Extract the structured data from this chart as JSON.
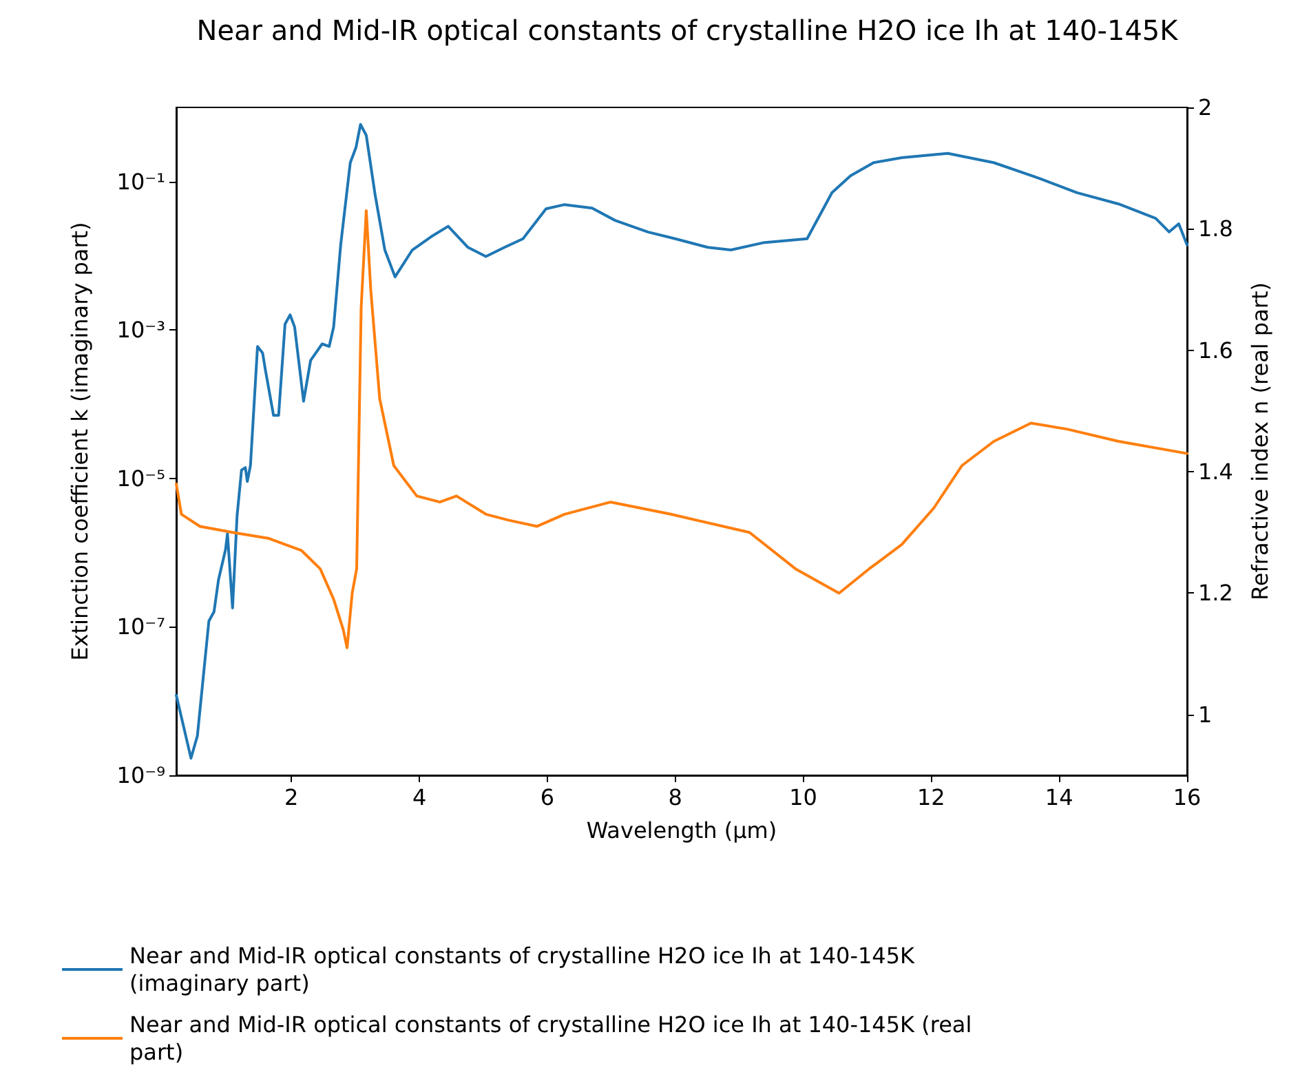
{
  "chart_data": {
    "type": "line",
    "title": "Near and Mid-IR optical constants of crystalline H2O ice Ih at 140-145K",
    "xlabel": "Wavelength (μm)",
    "ylabel": "Extinction coefficient k (imaginary part)",
    "y2label": "Refractive index n (real part)",
    "xlim": [
      0.2,
      16
    ],
    "xticks": [
      2,
      4,
      6,
      8,
      10,
      12,
      14,
      16
    ],
    "ylim": [
      1e-09,
      1
    ],
    "yticks": [
      {
        "value": 1e-09,
        "label": "10⁻⁹"
      },
      {
        "value": 1e-07,
        "label": "10⁻⁷"
      },
      {
        "value": 1e-05,
        "label": "10⁻⁵"
      },
      {
        "value": 0.001,
        "label": "10⁻³"
      },
      {
        "value": 0.1,
        "label": "10⁻¹"
      }
    ],
    "y2lim": [
      0.9,
      2.0
    ],
    "y2ticks": [
      1.0,
      1.2,
      1.4,
      1.6,
      1.8,
      2.0
    ],
    "log": "y",
    "legend": "bottom",
    "marker": "none",
    "line_style": "solid",
    "series": [
      {
        "name": "Near and Mid-IR optical constants of crystalline H2O ice Ih at 140-145K (imaginary part)",
        "color": "#1f77b4",
        "x": [
          0.2,
          0.43,
          0.53,
          0.71,
          0.79,
          0.86,
          0.97,
          1.0,
          1.08,
          1.15,
          1.22,
          1.28,
          1.31,
          1.36,
          1.47,
          1.55,
          1.59,
          1.72,
          1.8,
          1.9,
          1.98,
          2.05,
          2.19,
          2.3,
          2.48,
          2.59,
          2.66,
          2.77,
          2.92,
          3.01,
          3.08,
          3.17,
          3.31,
          3.46,
          3.62,
          3.89,
          4.18,
          4.45,
          4.76,
          5.04,
          5.33,
          5.62,
          5.98,
          6.27,
          6.7,
          7.06,
          7.57,
          8.0,
          8.51,
          8.87,
          9.37,
          10.06,
          10.45,
          10.74,
          11.1,
          11.54,
          12.26,
          12.98,
          13.7,
          14.28,
          14.93,
          15.22,
          15.51,
          15.72,
          15.87,
          16
        ],
        "values": [
          1.2e-08,
          1.7e-09,
          3.4e-09,
          1.2e-07,
          1.6e-07,
          4.3e-07,
          1.1e-06,
          1.8e-06,
          1.8e-07,
          3.1e-06,
          1.3e-05,
          1.4e-05,
          9.1e-06,
          1.5e-05,
          0.0006,
          0.00049,
          0.0003,
          7.1e-05,
          7.1e-05,
          0.0012,
          0.0016,
          0.0011,
          0.00011,
          0.00039,
          0.00065,
          0.0006,
          0.0011,
          0.014,
          0.18,
          0.29,
          0.59,
          0.42,
          0.065,
          0.012,
          0.0052,
          0.012,
          0.018,
          0.025,
          0.013,
          0.0098,
          0.013,
          0.017,
          0.043,
          0.049,
          0.044,
          0.03,
          0.021,
          0.017,
          0.013,
          0.012,
          0.015,
          0.017,
          0.071,
          0.12,
          0.18,
          0.21,
          0.24,
          0.18,
          0.11,
          0.071,
          0.05,
          0.04,
          0.032,
          0.021,
          0.027,
          0.014
        ]
      },
      {
        "name": "Near and Mid-IR optical constants of crystalline H2O ice Ih at 140-145K (real part)",
        "color": "#ff7f0e",
        "axis": "y2",
        "x": [
          0.2,
          0.28,
          0.57,
          1.08,
          1.65,
          2.16,
          2.45,
          2.66,
          2.81,
          2.87,
          2.95,
          3.02,
          3.09,
          3.17,
          3.24,
          3.38,
          3.6,
          3.96,
          4.32,
          4.58,
          5.04,
          5.4,
          5.84,
          6.27,
          6.99,
          7.93,
          9.16,
          9.88,
          10.56,
          11.03,
          11.54,
          12.04,
          12.48,
          12.98,
          13.56,
          14.13,
          14.93,
          16
        ],
        "values": [
          1.38,
          1.33,
          1.31,
          1.3,
          1.29,
          1.27,
          1.24,
          1.19,
          1.14,
          1.11,
          1.2,
          1.24,
          1.67,
          1.83,
          1.7,
          1.52,
          1.41,
          1.36,
          1.35,
          1.36,
          1.33,
          1.32,
          1.31,
          1.33,
          1.35,
          1.33,
          1.3,
          1.24,
          1.2,
          1.24,
          1.28,
          1.34,
          1.41,
          1.45,
          1.48,
          1.47,
          1.45,
          1.43
        ]
      }
    ]
  }
}
